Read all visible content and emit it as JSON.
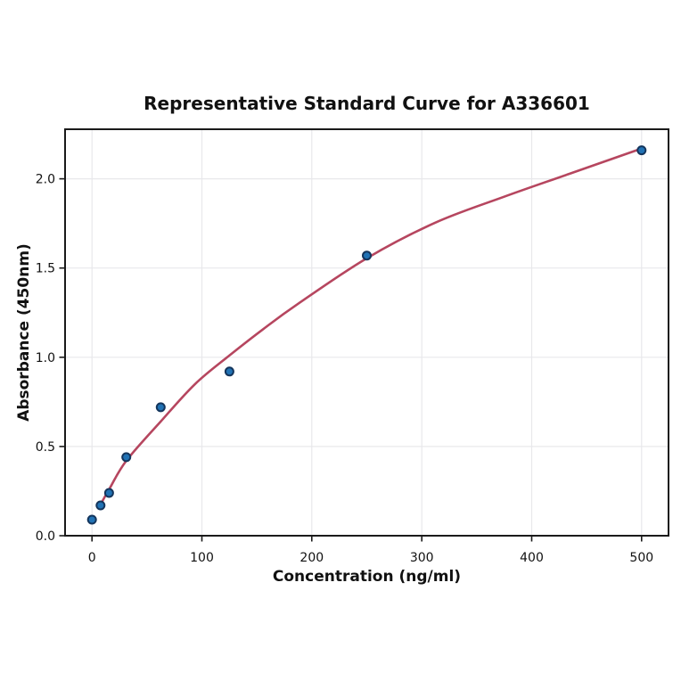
{
  "title": "Representative Standard Curve for A336601",
  "chart_data": {
    "type": "scatter",
    "title": "Representative Standard Curve for A336601",
    "xlabel": "Concentration (ng/ml)",
    "ylabel": "Absorbance (450nm)",
    "xlim": [
      -24.5,
      524.5
    ],
    "ylim": [
      0.0,
      2.278
    ],
    "grid": true,
    "x_ticks": [
      0,
      100,
      200,
      300,
      400,
      500
    ],
    "x_tick_labels": [
      "0",
      "100",
      "200",
      "300",
      "400",
      "500"
    ],
    "y_ticks": [
      0.0,
      0.5,
      1.0,
      1.5,
      2.0
    ],
    "y_tick_labels": [
      "0.0",
      "0.5",
      "1.0",
      "1.5",
      "2.0"
    ],
    "series": [
      {
        "name": "standard-points",
        "kind": "scatter",
        "x": [
          0,
          7.8,
          15.6,
          31.25,
          62.5,
          125,
          250,
          500
        ],
        "y": [
          0.09,
          0.17,
          0.24,
          0.44,
          0.72,
          0.92,
          1.57,
          2.16
        ]
      },
      {
        "name": "fitted-curve",
        "kind": "line",
        "x": [
          7.8,
          15.6,
          31.25,
          62.5,
          93.75,
          125,
          156.25,
          187.5,
          250,
          312.5,
          375,
          437.5,
          500
        ],
        "y": [
          0.175,
          0.26,
          0.42,
          0.64,
          0.85,
          1.01,
          1.16,
          1.3,
          1.555,
          1.755,
          1.9,
          2.035,
          2.17
        ]
      }
    ],
    "colors": {
      "point_fill": "#2172b4",
      "point_edge": "#14355c",
      "curve": "#b6465f",
      "grid": "#e8e8eb",
      "axis": "#1a1a1a",
      "text": "#111111",
      "background": "#ffffff"
    }
  }
}
